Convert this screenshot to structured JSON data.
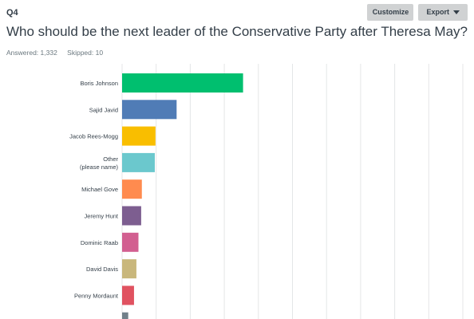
{
  "question": {
    "number": "Q4",
    "title": "Who should be the next leader of the Conservative Party after Theresa May?",
    "answered": "Answered: 1,332",
    "skipped": "Skipped: 10"
  },
  "toolbar": {
    "customize_label": "Customize",
    "export_label": "Export"
  },
  "chart_data": {
    "type": "bar",
    "orientation": "horizontal",
    "categories": [
      "Boris Johnson",
      "Sajid Javid",
      "Jacob Rees-Mogg",
      "Other (please name)",
      "Michael Gove",
      "Jeremy Hunt",
      "Dominic Raab",
      "David Davis",
      "Penny Mordaunt",
      ""
    ],
    "values": [
      35.5,
      16,
      9.8,
      9.6,
      5.8,
      5.6,
      4.8,
      4.2,
      3.5,
      1.8
    ],
    "colors": [
      "#00bf6f",
      "#507cb6",
      "#f9be00",
      "#6bc8cd",
      "#ff8b4f",
      "#7d5e90",
      "#d25f90",
      "#c9b77c",
      "#e05260",
      "#71808a"
    ],
    "xlim": [
      0,
      100
    ],
    "grid": true
  }
}
